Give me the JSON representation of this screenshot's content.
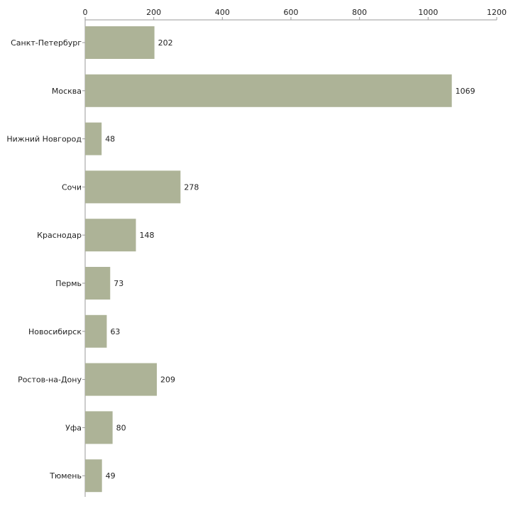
{
  "chart_data": {
    "type": "bar",
    "orientation": "horizontal",
    "title": "",
    "xlabel": "",
    "ylabel": "",
    "xlim": [
      0,
      1200
    ],
    "x_ticks": [
      0,
      200,
      400,
      600,
      800,
      1000,
      1200
    ],
    "x_axis_position": "top",
    "grid": false,
    "legend": "none",
    "bar_color": "#adb397",
    "categories": [
      "Санкт-Петербург",
      "Москва",
      "Нижний Новгород",
      "Сочи",
      "Краснодар",
      "Пермь",
      "Новосибирск",
      "Ростов-на-Дону",
      "Уфа",
      "Тюмень"
    ],
    "values": [
      202,
      1069,
      48,
      278,
      148,
      73,
      63,
      209,
      80,
      49
    ]
  }
}
